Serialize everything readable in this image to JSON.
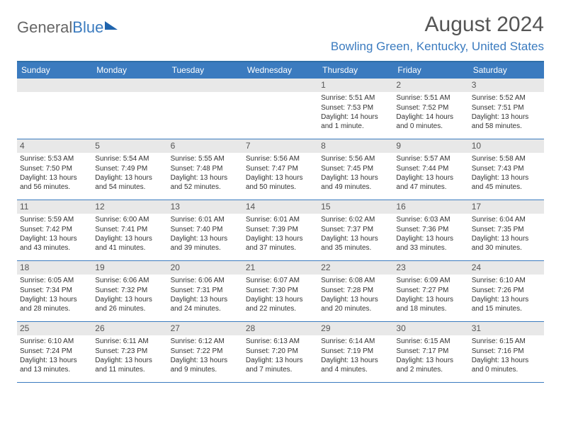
{
  "brand": {
    "part1": "General",
    "part2": "Blue"
  },
  "title": "August 2024",
  "location": "Bowling Green, Kentucky, United States",
  "colors": {
    "header_bar": "#3b7bbf",
    "rule": "#2f6fa8",
    "daynum_bg": "#e8e8e8",
    "text": "#333333",
    "muted": "#555555",
    "bg": "#ffffff"
  },
  "layout": {
    "columns": 7,
    "first_row_leading_blanks": 4
  },
  "dayHeaders": [
    "Sunday",
    "Monday",
    "Tuesday",
    "Wednesday",
    "Thursday",
    "Friday",
    "Saturday"
  ],
  "typography": {
    "month_title_pt": 30,
    "location_pt": 17,
    "dayhead_pt": 12,
    "daynum_pt": 12,
    "body_pt": 10
  },
  "days": [
    {
      "n": "1",
      "sunrise": "Sunrise: 5:51 AM",
      "sunset": "Sunset: 7:53 PM",
      "daylight": "Daylight: 14 hours and 1 minute."
    },
    {
      "n": "2",
      "sunrise": "Sunrise: 5:51 AM",
      "sunset": "Sunset: 7:52 PM",
      "daylight": "Daylight: 14 hours and 0 minutes."
    },
    {
      "n": "3",
      "sunrise": "Sunrise: 5:52 AM",
      "sunset": "Sunset: 7:51 PM",
      "daylight": "Daylight: 13 hours and 58 minutes."
    },
    {
      "n": "4",
      "sunrise": "Sunrise: 5:53 AM",
      "sunset": "Sunset: 7:50 PM",
      "daylight": "Daylight: 13 hours and 56 minutes."
    },
    {
      "n": "5",
      "sunrise": "Sunrise: 5:54 AM",
      "sunset": "Sunset: 7:49 PM",
      "daylight": "Daylight: 13 hours and 54 minutes."
    },
    {
      "n": "6",
      "sunrise": "Sunrise: 5:55 AM",
      "sunset": "Sunset: 7:48 PM",
      "daylight": "Daylight: 13 hours and 52 minutes."
    },
    {
      "n": "7",
      "sunrise": "Sunrise: 5:56 AM",
      "sunset": "Sunset: 7:47 PM",
      "daylight": "Daylight: 13 hours and 50 minutes."
    },
    {
      "n": "8",
      "sunrise": "Sunrise: 5:56 AM",
      "sunset": "Sunset: 7:45 PM",
      "daylight": "Daylight: 13 hours and 49 minutes."
    },
    {
      "n": "9",
      "sunrise": "Sunrise: 5:57 AM",
      "sunset": "Sunset: 7:44 PM",
      "daylight": "Daylight: 13 hours and 47 minutes."
    },
    {
      "n": "10",
      "sunrise": "Sunrise: 5:58 AM",
      "sunset": "Sunset: 7:43 PM",
      "daylight": "Daylight: 13 hours and 45 minutes."
    },
    {
      "n": "11",
      "sunrise": "Sunrise: 5:59 AM",
      "sunset": "Sunset: 7:42 PM",
      "daylight": "Daylight: 13 hours and 43 minutes."
    },
    {
      "n": "12",
      "sunrise": "Sunrise: 6:00 AM",
      "sunset": "Sunset: 7:41 PM",
      "daylight": "Daylight: 13 hours and 41 minutes."
    },
    {
      "n": "13",
      "sunrise": "Sunrise: 6:01 AM",
      "sunset": "Sunset: 7:40 PM",
      "daylight": "Daylight: 13 hours and 39 minutes."
    },
    {
      "n": "14",
      "sunrise": "Sunrise: 6:01 AM",
      "sunset": "Sunset: 7:39 PM",
      "daylight": "Daylight: 13 hours and 37 minutes."
    },
    {
      "n": "15",
      "sunrise": "Sunrise: 6:02 AM",
      "sunset": "Sunset: 7:37 PM",
      "daylight": "Daylight: 13 hours and 35 minutes."
    },
    {
      "n": "16",
      "sunrise": "Sunrise: 6:03 AM",
      "sunset": "Sunset: 7:36 PM",
      "daylight": "Daylight: 13 hours and 33 minutes."
    },
    {
      "n": "17",
      "sunrise": "Sunrise: 6:04 AM",
      "sunset": "Sunset: 7:35 PM",
      "daylight": "Daylight: 13 hours and 30 minutes."
    },
    {
      "n": "18",
      "sunrise": "Sunrise: 6:05 AM",
      "sunset": "Sunset: 7:34 PM",
      "daylight": "Daylight: 13 hours and 28 minutes."
    },
    {
      "n": "19",
      "sunrise": "Sunrise: 6:06 AM",
      "sunset": "Sunset: 7:32 PM",
      "daylight": "Daylight: 13 hours and 26 minutes."
    },
    {
      "n": "20",
      "sunrise": "Sunrise: 6:06 AM",
      "sunset": "Sunset: 7:31 PM",
      "daylight": "Daylight: 13 hours and 24 minutes."
    },
    {
      "n": "21",
      "sunrise": "Sunrise: 6:07 AM",
      "sunset": "Sunset: 7:30 PM",
      "daylight": "Daylight: 13 hours and 22 minutes."
    },
    {
      "n": "22",
      "sunrise": "Sunrise: 6:08 AM",
      "sunset": "Sunset: 7:28 PM",
      "daylight": "Daylight: 13 hours and 20 minutes."
    },
    {
      "n": "23",
      "sunrise": "Sunrise: 6:09 AM",
      "sunset": "Sunset: 7:27 PM",
      "daylight": "Daylight: 13 hours and 18 minutes."
    },
    {
      "n": "24",
      "sunrise": "Sunrise: 6:10 AM",
      "sunset": "Sunset: 7:26 PM",
      "daylight": "Daylight: 13 hours and 15 minutes."
    },
    {
      "n": "25",
      "sunrise": "Sunrise: 6:10 AM",
      "sunset": "Sunset: 7:24 PM",
      "daylight": "Daylight: 13 hours and 13 minutes."
    },
    {
      "n": "26",
      "sunrise": "Sunrise: 6:11 AM",
      "sunset": "Sunset: 7:23 PM",
      "daylight": "Daylight: 13 hours and 11 minutes."
    },
    {
      "n": "27",
      "sunrise": "Sunrise: 6:12 AM",
      "sunset": "Sunset: 7:22 PM",
      "daylight": "Daylight: 13 hours and 9 minutes."
    },
    {
      "n": "28",
      "sunrise": "Sunrise: 6:13 AM",
      "sunset": "Sunset: 7:20 PM",
      "daylight": "Daylight: 13 hours and 7 minutes."
    },
    {
      "n": "29",
      "sunrise": "Sunrise: 6:14 AM",
      "sunset": "Sunset: 7:19 PM",
      "daylight": "Daylight: 13 hours and 4 minutes."
    },
    {
      "n": "30",
      "sunrise": "Sunrise: 6:15 AM",
      "sunset": "Sunset: 7:17 PM",
      "daylight": "Daylight: 13 hours and 2 minutes."
    },
    {
      "n": "31",
      "sunrise": "Sunrise: 6:15 AM",
      "sunset": "Sunset: 7:16 PM",
      "daylight": "Daylight: 13 hours and 0 minutes."
    }
  ]
}
